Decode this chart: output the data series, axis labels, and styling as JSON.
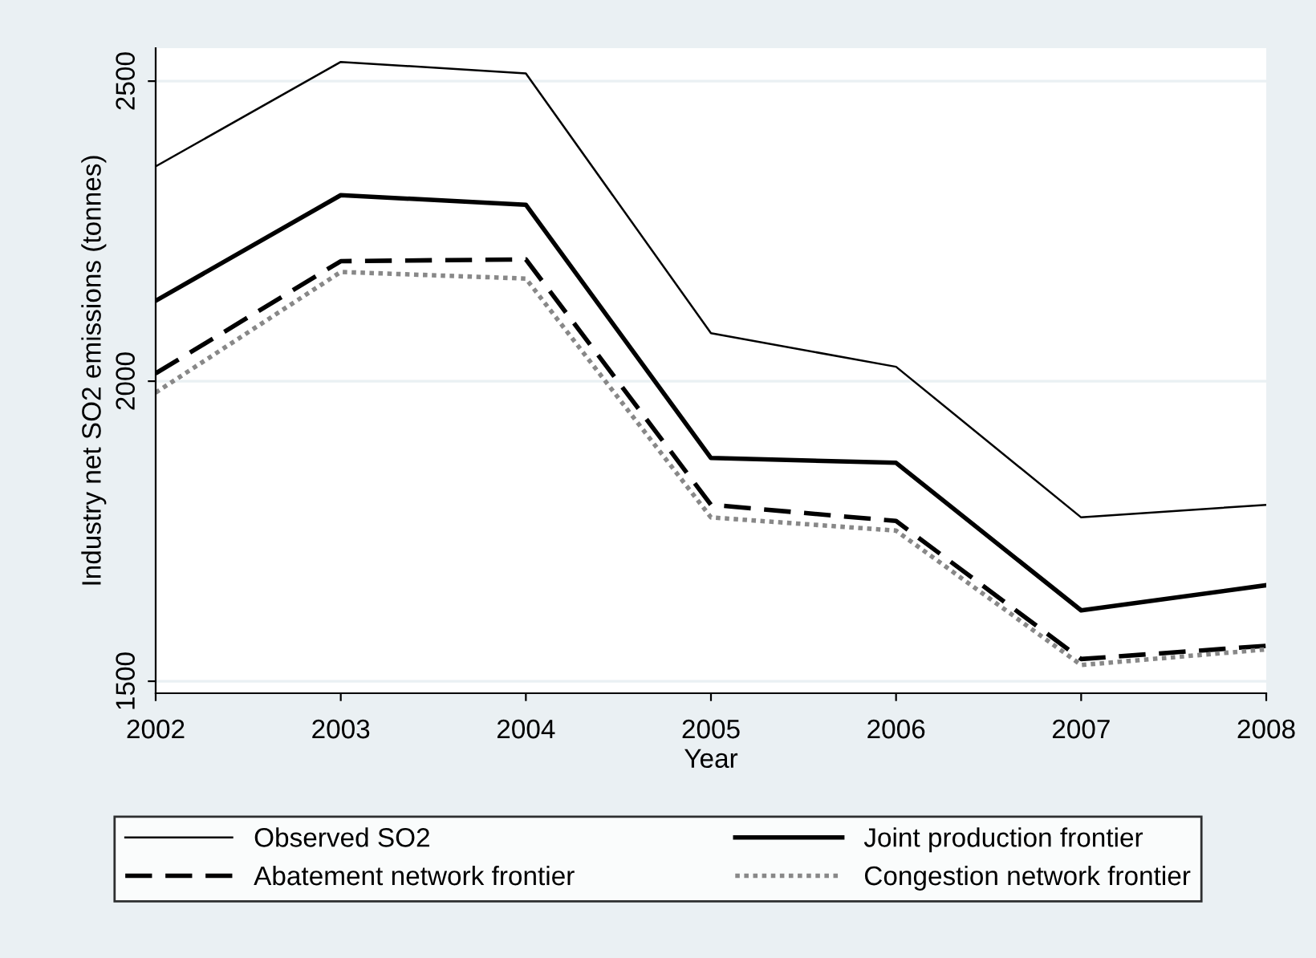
{
  "chart_data": {
    "type": "line",
    "xlabel": "Year",
    "ylabel": "Industry net SO2 emissions (tonnes)",
    "x": [
      2002,
      2003,
      2004,
      2005,
      2006,
      2007,
      2008
    ],
    "series": [
      {
        "name": "Observed SO2",
        "color": "#000000",
        "line_style": "solid",
        "values": [
          2358,
          2532,
          2513,
          2080,
          2024,
          1773,
          1794
        ]
      },
      {
        "name": "Joint production frontier",
        "color": "#000000",
        "line_style": "solid",
        "values": [
          2134,
          2310,
          2294,
          1872,
          1864,
          1618,
          1660
        ]
      },
      {
        "name": "Abatement network frontier",
        "color": "#000000",
        "line_style": "dashed",
        "values": [
          2013,
          2200,
          2203,
          1794,
          1767,
          1537,
          1559
        ]
      },
      {
        "name": "Congestion network frontier",
        "color": "#888888",
        "line_style": "dotted",
        "values": [
          1981,
          2182,
          2171,
          1773,
          1751,
          1527,
          1553
        ]
      }
    ],
    "xlim": [
      2002,
      2008
    ],
    "xticks": [
      2002,
      2003,
      2004,
      2005,
      2006,
      2007,
      2008
    ],
    "ylim": [
      1480,
      2555
    ],
    "yticks": [
      1500,
      2000,
      2500
    ],
    "grid": "y",
    "legend": "bottom",
    "marker": "none"
  }
}
